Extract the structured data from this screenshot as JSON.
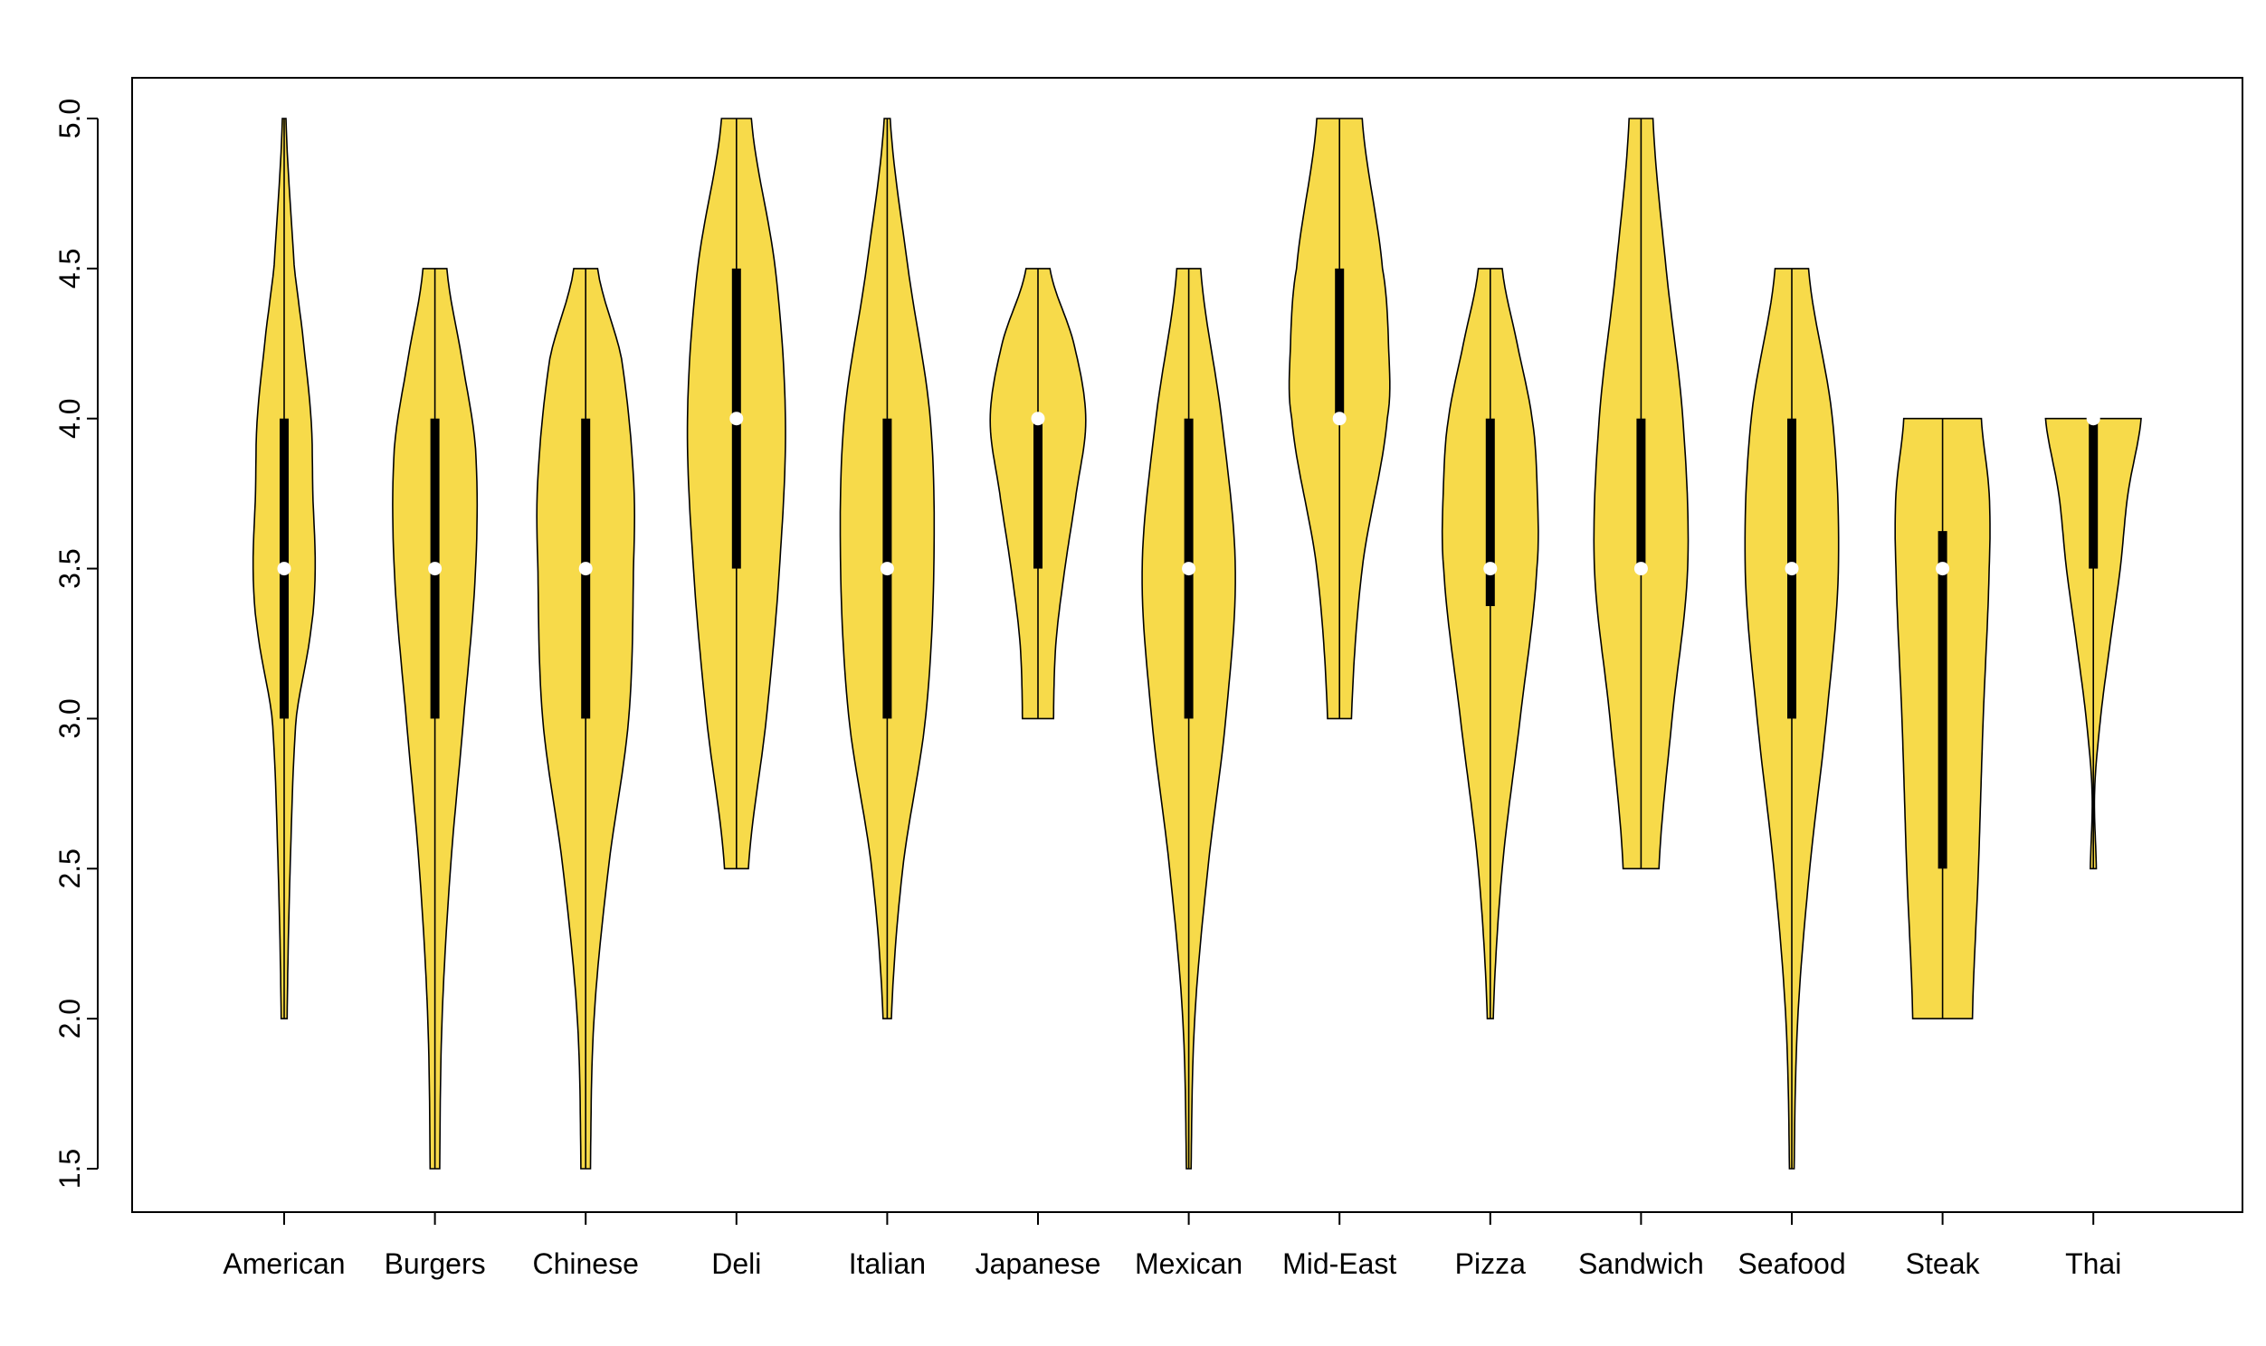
{
  "colors": {
    "violin_fill": "#F7DA4A",
    "outline": "#000000",
    "median_dot": "#ffffff",
    "background": "#ffffff"
  },
  "chart_data": {
    "type": "violin",
    "title": "",
    "xlabel": "",
    "ylabel": "",
    "ylim": [
      1.5,
      5.0
    ],
    "yticks": [
      "1.5",
      "2.0",
      "2.5",
      "3.0",
      "3.5",
      "4.0",
      "4.5",
      "5.0"
    ],
    "grid": false,
    "legend": "none",
    "categories": [
      "American",
      "Burgers",
      "Chinese",
      "Deli",
      "Italian",
      "Japanese",
      "Mexican",
      "Mid-East",
      "Pizza",
      "Sandwich",
      "Seafood",
      "Steak",
      "Thai"
    ],
    "summary": [
      {
        "min": 2.0,
        "q1": 3.0,
        "median": 3.5,
        "q3": 4.0,
        "max": 5.0
      },
      {
        "min": 1.5,
        "q1": 3.0,
        "median": 3.5,
        "q3": 4.0,
        "max": 4.5
      },
      {
        "min": 1.5,
        "q1": 3.0,
        "median": 3.5,
        "q3": 4.0,
        "max": 4.5
      },
      {
        "min": 2.5,
        "q1": 3.5,
        "median": 4.0,
        "q3": 4.5,
        "max": 5.0
      },
      {
        "min": 2.0,
        "q1": 3.0,
        "median": 3.5,
        "q3": 4.0,
        "max": 5.0
      },
      {
        "min": 3.0,
        "q1": 3.5,
        "median": 4.0,
        "q3": 4.0,
        "max": 4.5
      },
      {
        "min": 1.5,
        "q1": 3.0,
        "median": 3.5,
        "q3": 4.0,
        "max": 4.5
      },
      {
        "min": 3.0,
        "q1": 4.0,
        "median": 4.0,
        "q3": 4.5,
        "max": 5.0
      },
      {
        "min": 2.0,
        "q1": 3.375,
        "median": 3.5,
        "q3": 4.0,
        "max": 4.5
      },
      {
        "min": 2.5,
        "q1": 3.5,
        "median": 3.5,
        "q3": 4.0,
        "max": 5.0
      },
      {
        "min": 1.5,
        "q1": 3.0,
        "median": 3.5,
        "q3": 4.0,
        "max": 4.5
      },
      {
        "min": 2.0,
        "q1": 2.5,
        "median": 3.5,
        "q3": 3.625,
        "max": 4.0
      },
      {
        "min": 2.5,
        "q1": 3.5,
        "median": 4.0,
        "q3": 4.0,
        "max": 4.0
      }
    ],
    "density_profiles": [
      [
        [
          2.0,
          0.05
        ],
        [
          2.5,
          0.1
        ],
        [
          3.0,
          0.2
        ],
        [
          3.3,
          0.45
        ],
        [
          3.5,
          0.52
        ],
        [
          3.75,
          0.48
        ],
        [
          4.0,
          0.45
        ],
        [
          4.3,
          0.3
        ],
        [
          4.5,
          0.17
        ],
        [
          5.0,
          0.03
        ]
      ],
      [
        [
          1.5,
          0.08
        ],
        [
          2.0,
          0.12
        ],
        [
          2.5,
          0.26
        ],
        [
          3.0,
          0.48
        ],
        [
          3.5,
          0.68
        ],
        [
          3.9,
          0.68
        ],
        [
          4.2,
          0.45
        ],
        [
          4.5,
          0.2
        ]
      ],
      [
        [
          1.5,
          0.08
        ],
        [
          2.0,
          0.14
        ],
        [
          2.5,
          0.38
        ],
        [
          3.0,
          0.72
        ],
        [
          3.5,
          0.8
        ],
        [
          3.8,
          0.8
        ],
        [
          4.2,
          0.6
        ],
        [
          4.5,
          0.2
        ]
      ],
      [
        [
          2.5,
          0.2
        ],
        [
          3.0,
          0.5
        ],
        [
          3.5,
          0.72
        ],
        [
          4.0,
          0.82
        ],
        [
          4.5,
          0.65
        ],
        [
          5.0,
          0.25
        ]
      ],
      [
        [
          2.0,
          0.07
        ],
        [
          2.5,
          0.26
        ],
        [
          3.0,
          0.64
        ],
        [
          3.5,
          0.78
        ],
        [
          4.0,
          0.72
        ],
        [
          4.5,
          0.35
        ],
        [
          5.0,
          0.05
        ]
      ],
      [
        [
          3.0,
          0.26
        ],
        [
          3.25,
          0.3
        ],
        [
          3.5,
          0.45
        ],
        [
          3.75,
          0.64
        ],
        [
          4.0,
          0.8
        ],
        [
          4.25,
          0.6
        ],
        [
          4.5,
          0.2
        ]
      ],
      [
        [
          1.5,
          0.04
        ],
        [
          2.0,
          0.1
        ],
        [
          2.5,
          0.32
        ],
        [
          3.0,
          0.62
        ],
        [
          3.5,
          0.78
        ],
        [
          4.0,
          0.55
        ],
        [
          4.5,
          0.2
        ]
      ],
      [
        [
          3.0,
          0.2
        ],
        [
          3.5,
          0.38
        ],
        [
          4.0,
          0.8
        ],
        [
          4.25,
          0.82
        ],
        [
          4.5,
          0.72
        ],
        [
          5.0,
          0.38
        ]
      ],
      [
        [
          2.0,
          0.05
        ],
        [
          2.5,
          0.2
        ],
        [
          3.0,
          0.5
        ],
        [
          3.5,
          0.78
        ],
        [
          3.8,
          0.78
        ],
        [
          4.0,
          0.7
        ],
        [
          4.25,
          0.45
        ],
        [
          4.5,
          0.2
        ]
      ],
      [
        [
          2.5,
          0.3
        ],
        [
          3.0,
          0.52
        ],
        [
          3.5,
          0.78
        ],
        [
          4.0,
          0.7
        ],
        [
          4.5,
          0.42
        ],
        [
          5.0,
          0.2
        ]
      ],
      [
        [
          1.5,
          0.04
        ],
        [
          2.0,
          0.1
        ],
        [
          2.5,
          0.3
        ],
        [
          3.0,
          0.58
        ],
        [
          3.5,
          0.78
        ],
        [
          4.0,
          0.68
        ],
        [
          4.5,
          0.28
        ]
      ],
      [
        [
          2.0,
          0.5
        ],
        [
          2.5,
          0.6
        ],
        [
          3.0,
          0.68
        ],
        [
          3.5,
          0.78
        ],
        [
          3.75,
          0.78
        ],
        [
          4.0,
          0.65
        ]
      ],
      [
        [
          2.5,
          0.05
        ],
        [
          2.75,
          0.02
        ],
        [
          3.0,
          0.12
        ],
        [
          3.25,
          0.28
        ],
        [
          3.5,
          0.45
        ],
        [
          3.75,
          0.58
        ],
        [
          4.0,
          0.8
        ]
      ]
    ]
  }
}
